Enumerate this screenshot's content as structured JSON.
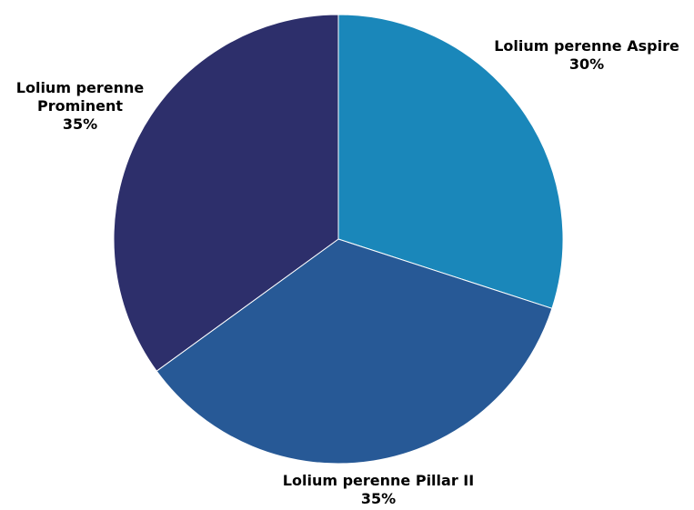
{
  "chart_data": {
    "type": "pie",
    "title": "",
    "start_angle_deg": 0,
    "direction": "clockwise",
    "slices": [
      {
        "label": "Lolium perenne Aspire",
        "label_lines": [
          "Lolium perenne Aspire"
        ],
        "value": 30,
        "value_label": "30%",
        "color": "#1a87ba"
      },
      {
        "label": "Lolium perenne Pillar II",
        "label_lines": [
          "Lolium perenne Pillar II"
        ],
        "value": 35,
        "value_label": "35%",
        "color": "#275996"
      },
      {
        "label": "Lolium perenne Prominent",
        "label_lines": [
          "Lolium perenne",
          "Prominent"
        ],
        "value": 35,
        "value_label": "35%",
        "color": "#2d2f6b"
      }
    ],
    "legend": "none"
  }
}
